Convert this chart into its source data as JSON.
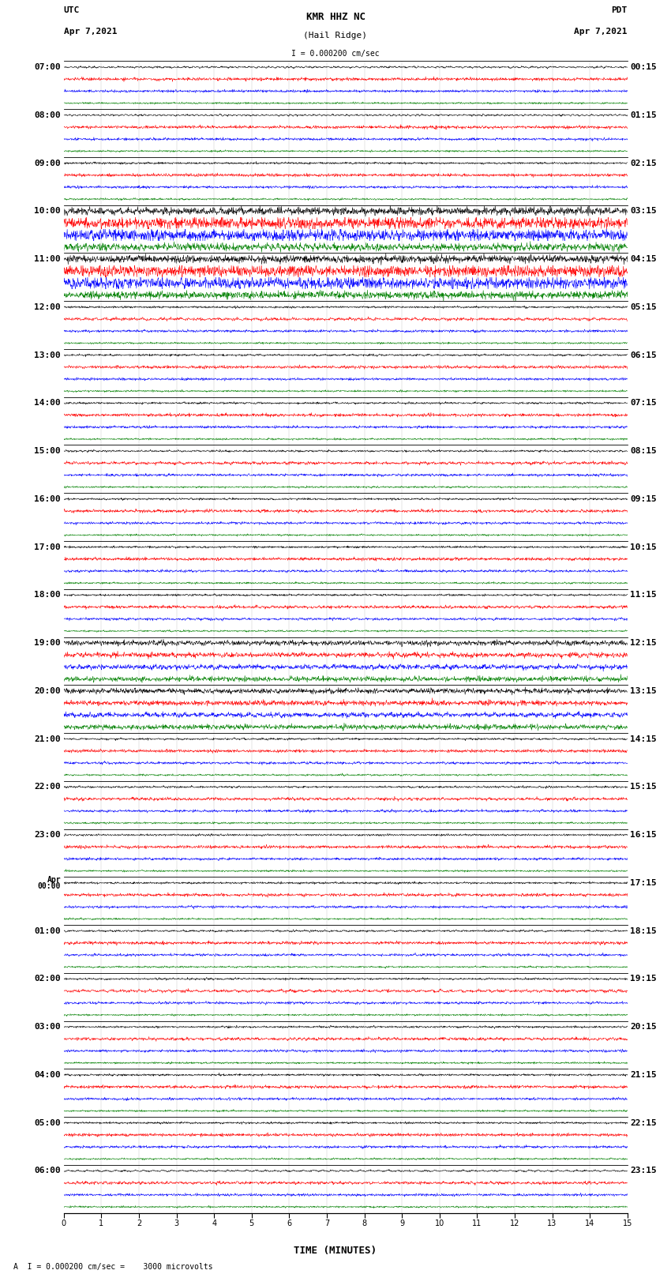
{
  "title_line1": "KMR HHZ NC",
  "title_line2": "(Hail Ridge)",
  "scale_text": "I = 0.000200 cm/sec",
  "bottom_text": "A  I = 0.000200 cm/sec =    3000 microvolts",
  "xlabel": "TIME (MINUTES)",
  "left_label": "UTC",
  "left_date": "Apr 7,2021",
  "right_label": "PDT",
  "right_date": "Apr 7,2021",
  "utc_times": [
    "07:00",
    "08:00",
    "09:00",
    "10:00",
    "11:00",
    "12:00",
    "13:00",
    "14:00",
    "15:00",
    "16:00",
    "17:00",
    "18:00",
    "19:00",
    "20:00",
    "21:00",
    "22:00",
    "23:00",
    "Apr\n00:00",
    "01:00",
    "02:00",
    "03:00",
    "04:00",
    "05:00",
    "06:00"
  ],
  "pdt_times": [
    "00:15",
    "01:15",
    "02:15",
    "03:15",
    "04:15",
    "05:15",
    "06:15",
    "07:15",
    "08:15",
    "09:15",
    "10:15",
    "11:15",
    "12:15",
    "13:15",
    "14:15",
    "15:15",
    "16:15",
    "17:15",
    "18:15",
    "19:15",
    "20:15",
    "21:15",
    "22:15",
    "23:15"
  ],
  "n_rows": 24,
  "n_traces_per_row": 4,
  "trace_colors": [
    "#000000",
    "#ff0000",
    "#0000ff",
    "#008000"
  ],
  "bg_color": "#ffffff",
  "fig_width": 8.5,
  "fig_height": 16.13,
  "dpi": 100,
  "x_ticks": [
    0,
    1,
    2,
    3,
    4,
    5,
    6,
    7,
    8,
    9,
    10,
    11,
    12,
    13,
    14,
    15
  ],
  "x_min": 0,
  "x_max": 15,
  "large_amp_rows": [
    3,
    4
  ],
  "medium_amp_rows": [
    12,
    13
  ],
  "small_amp_rows": [
    17
  ]
}
